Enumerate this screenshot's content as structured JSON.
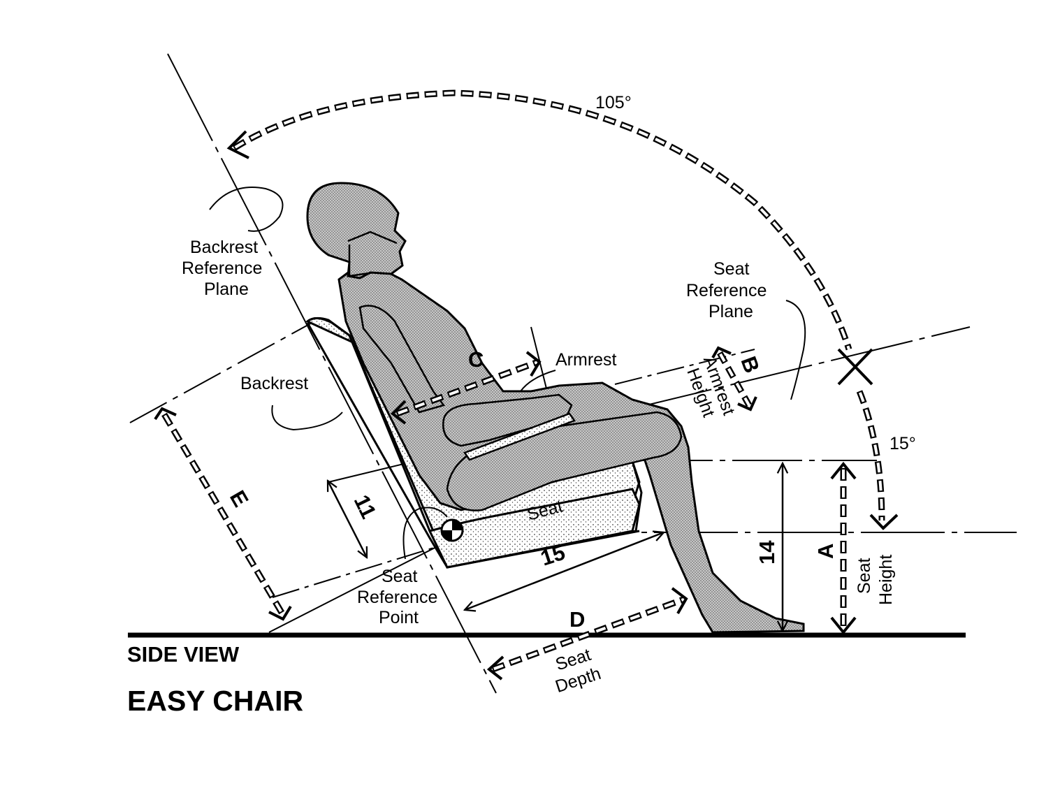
{
  "titles": {
    "view": "SIDE VIEW",
    "name": "EASY CHAIR"
  },
  "angles": {
    "backrest": "105°",
    "seat": "15°"
  },
  "labels": {
    "backrest_plane": [
      "Backrest",
      "Reference",
      "Plane"
    ],
    "seat_plane": [
      "Seat",
      "Reference",
      "Plane"
    ],
    "armrest": "Armrest",
    "armrest_height": [
      "Armrest",
      "Height"
    ],
    "backrest": "Backrest",
    "seat": "Seat",
    "seat_ref_point": [
      "Seat",
      "Reference",
      "Point"
    ],
    "seat_height": [
      "Seat",
      "Height"
    ],
    "seat_depth": [
      "Seat",
      "Depth"
    ]
  },
  "dimensions": {
    "a": "A",
    "b": "B",
    "c": "C",
    "d": "D",
    "e": "E",
    "d11": "11",
    "d14": "14",
    "d15": "15"
  },
  "colors": {
    "ink": "#000000",
    "shade": "#bdbdbd",
    "paper": "#ffffff"
  }
}
